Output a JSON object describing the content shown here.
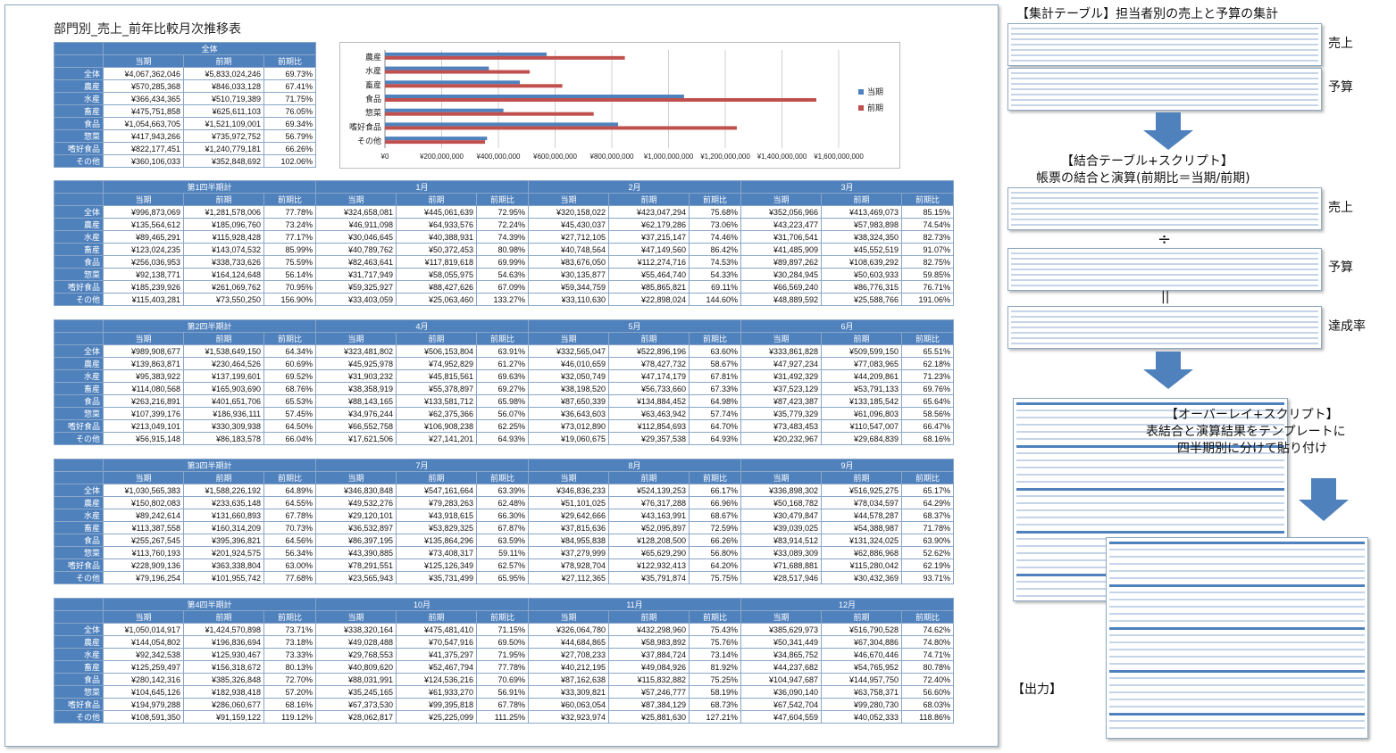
{
  "main": {
    "title": "部門別_売上_前年比較月次推移表",
    "summary": {
      "group": "全体",
      "cols": [
        "当期",
        "前期",
        "前期比"
      ],
      "rows": [
        [
          "全体",
          "¥4,067,362,046",
          "¥5,833,024,246",
          "69.73%"
        ],
        [
          "農産",
          "¥570,285,368",
          "¥846,033,128",
          "67.41%"
        ],
        [
          "水産",
          "¥366,434,365",
          "¥510,719,389",
          "71.75%"
        ],
        [
          "畜産",
          "¥475,751,858",
          "¥625,611,103",
          "76.05%"
        ],
        [
          "食品",
          "¥1,054,663,705",
          "¥1,521,109,001",
          "69.34%"
        ],
        [
          "惣菜",
          "¥417,943,266",
          "¥735,972,752",
          "56.79%"
        ],
        [
          "嗜好食品",
          "¥822,177,451",
          "¥1,240,779,181",
          "66.26%"
        ],
        [
          "その他",
          "¥360,106,033",
          "¥352,848,692",
          "102.06%"
        ]
      ]
    },
    "quarters": [
      {
        "groups": [
          "第1四半期計",
          "1月",
          "2月",
          "3月"
        ],
        "rows": [
          [
            "全体",
            "¥996,873,069",
            "¥1,281,578,006",
            "77.78%",
            "¥324,658,081",
            "¥445,061,639",
            "72.95%",
            "¥320,158,022",
            "¥423,047,294",
            "75.68%",
            "¥352,056,966",
            "¥413,469,073",
            "85.15%"
          ],
          [
            "農産",
            "¥135,564,612",
            "¥185,096,760",
            "73.24%",
            "¥46,911,098",
            "¥64,933,576",
            "72.24%",
            "¥45,430,037",
            "¥62,179,286",
            "73.06%",
            "¥43,223,477",
            "¥57,983,898",
            "74.54%"
          ],
          [
            "水産",
            "¥89,465,291",
            "¥115,928,428",
            "77.17%",
            "¥30,046,645",
            "¥40,388,931",
            "74.39%",
            "¥27,712,105",
            "¥37,215,147",
            "74.46%",
            "¥31,706,541",
            "¥38,324,350",
            "82.73%"
          ],
          [
            "畜産",
            "¥123,024,235",
            "¥143,074,532",
            "85.99%",
            "¥40,789,762",
            "¥50,372,453",
            "80.98%",
            "¥40,748,564",
            "¥47,149,560",
            "86.42%",
            "¥41,485,909",
            "¥45,552,519",
            "91.07%"
          ],
          [
            "食品",
            "¥256,036,953",
            "¥338,733,626",
            "75.59%",
            "¥82,463,641",
            "¥117,819,618",
            "69.99%",
            "¥83,676,050",
            "¥112,274,716",
            "74.53%",
            "¥89,897,262",
            "¥108,639,292",
            "82.75%"
          ],
          [
            "惣菜",
            "¥92,138,771",
            "¥164,124,648",
            "56.14%",
            "¥31,717,949",
            "¥58,055,975",
            "54.63%",
            "¥30,135,877",
            "¥55,464,740",
            "54.33%",
            "¥30,284,945",
            "¥50,603,933",
            "59.85%"
          ],
          [
            "嗜好食品",
            "¥185,239,926",
            "¥261,069,762",
            "70.95%",
            "¥59,325,927",
            "¥88,427,626",
            "67.09%",
            "¥59,344,759",
            "¥85,865,821",
            "69.11%",
            "¥66,569,240",
            "¥86,776,315",
            "76.71%"
          ],
          [
            "その他",
            "¥115,403,281",
            "¥73,550,250",
            "156.90%",
            "¥33,403,059",
            "¥25,063,460",
            "133.27%",
            "¥33,110,630",
            "¥22,898,024",
            "144.60%",
            "¥48,889,592",
            "¥25,588,766",
            "191.06%"
          ]
        ]
      },
      {
        "groups": [
          "第2四半期計",
          "4月",
          "5月",
          "6月"
        ],
        "rows": [
          [
            "全体",
            "¥989,908,677",
            "¥1,538,649,150",
            "64.34%",
            "¥323,481,802",
            "¥506,153,804",
            "63.91%",
            "¥332,565,047",
            "¥522,896,196",
            "63.60%",
            "¥333,861,828",
            "¥509,599,150",
            "65.51%"
          ],
          [
            "農産",
            "¥139,863,871",
            "¥230,464,526",
            "60.69%",
            "¥45,925,978",
            "¥74,952,829",
            "61.27%",
            "¥46,010,659",
            "¥78,427,732",
            "58.67%",
            "¥47,927,234",
            "¥77,083,965",
            "62.18%"
          ],
          [
            "水産",
            "¥95,383,922",
            "¥137,199,601",
            "69.52%",
            "¥31,903,232",
            "¥45,815,561",
            "69.63%",
            "¥32,050,749",
            "¥47,174,179",
            "67.81%",
            "¥31,492,329",
            "¥44,209,861",
            "71.23%"
          ],
          [
            "畜産",
            "¥114,080,568",
            "¥165,903,690",
            "68.76%",
            "¥38,358,919",
            "¥55,378,897",
            "69.27%",
            "¥38,198,520",
            "¥56,733,660",
            "67.33%",
            "¥37,523,129",
            "¥53,791,133",
            "69.76%"
          ],
          [
            "食品",
            "¥263,216,891",
            "¥401,651,706",
            "65.53%",
            "¥88,143,165",
            "¥133,581,712",
            "65.98%",
            "¥87,650,339",
            "¥134,884,452",
            "64.98%",
            "¥87,423,387",
            "¥133,185,542",
            "65.64%"
          ],
          [
            "惣菜",
            "¥107,399,176",
            "¥186,936,111",
            "57.45%",
            "¥34,976,244",
            "¥62,375,366",
            "56.07%",
            "¥36,643,603",
            "¥63,463,942",
            "57.74%",
            "¥35,779,329",
            "¥61,096,803",
            "58.56%"
          ],
          [
            "嗜好食品",
            "¥213,049,101",
            "¥330,309,938",
            "64.50%",
            "¥66,552,758",
            "¥106,908,238",
            "62.25%",
            "¥73,012,890",
            "¥112,854,693",
            "64.70%",
            "¥73,483,453",
            "¥110,547,007",
            "66.47%"
          ],
          [
            "その他",
            "¥56,915,148",
            "¥86,183,578",
            "66.04%",
            "¥17,621,506",
            "¥27,141,201",
            "64.93%",
            "¥19,060,675",
            "¥29,357,538",
            "64.93%",
            "¥20,232,967",
            "¥29,684,839",
            "68.16%"
          ]
        ]
      },
      {
        "groups": [
          "第3四半期計",
          "7月",
          "8月",
          "9月"
        ],
        "rows": [
          [
            "全体",
            "¥1,030,565,383",
            "¥1,588,226,192",
            "64.89%",
            "¥346,830,848",
            "¥547,161,664",
            "63.39%",
            "¥346,836,233",
            "¥524,139,253",
            "66.17%",
            "¥336,898,302",
            "¥516,925,275",
            "65.17%"
          ],
          [
            "農産",
            "¥150,802,083",
            "¥233,635,148",
            "64.55%",
            "¥49,532,276",
            "¥79,283,263",
            "62.48%",
            "¥51,101,025",
            "¥76,317,288",
            "66.96%",
            "¥50,168,782",
            "¥78,034,597",
            "64.29%"
          ],
          [
            "水産",
            "¥89,242,614",
            "¥131,660,893",
            "67.78%",
            "¥29,120,101",
            "¥43,918,615",
            "66.30%",
            "¥29,642,666",
            "¥43,163,991",
            "68.67%",
            "¥30,479,847",
            "¥44,578,287",
            "68.37%"
          ],
          [
            "畜産",
            "¥113,387,558",
            "¥160,314,209",
            "70.73%",
            "¥36,532,897",
            "¥53,829,325",
            "67.87%",
            "¥37,815,636",
            "¥52,095,897",
            "72.59%",
            "¥39,039,025",
            "¥54,388,987",
            "71.78%"
          ],
          [
            "食品",
            "¥255,267,545",
            "¥395,396,821",
            "64.56%",
            "¥86,397,195",
            "¥135,864,296",
            "63.59%",
            "¥84,955,838",
            "¥128,208,500",
            "66.26%",
            "¥83,914,512",
            "¥131,324,025",
            "63.90%"
          ],
          [
            "惣菜",
            "¥113,760,193",
            "¥201,924,575",
            "56.34%",
            "¥43,390,885",
            "¥73,408,317",
            "59.11%",
            "¥37,279,999",
            "¥65,629,290",
            "56.80%",
            "¥33,089,309",
            "¥62,886,968",
            "52.62%"
          ],
          [
            "嗜好食品",
            "¥228,909,136",
            "¥363,338,804",
            "63.00%",
            "¥78,291,551",
            "¥125,126,349",
            "62.57%",
            "¥78,928,704",
            "¥122,932,413",
            "64.20%",
            "¥71,688,881",
            "¥115,280,042",
            "62.19%"
          ],
          [
            "その他",
            "¥79,196,254",
            "¥101,955,742",
            "77.68%",
            "¥23,565,943",
            "¥35,731,499",
            "65.95%",
            "¥27,112,365",
            "¥35,791,874",
            "75.75%",
            "¥28,517,946",
            "¥30,432,369",
            "93.71%"
          ]
        ]
      },
      {
        "groups": [
          "第4四半期計",
          "10月",
          "11月",
          "12月"
        ],
        "rows": [
          [
            "全体",
            "¥1,050,014,917",
            "¥1,424,570,898",
            "73.71%",
            "¥338,320,164",
            "¥475,481,410",
            "71.15%",
            "¥326,064,780",
            "¥432,298,960",
            "75.43%",
            "¥385,629,973",
            "¥516,790,528",
            "74.62%"
          ],
          [
            "農産",
            "¥144,054,802",
            "¥196,836,694",
            "73.18%",
            "¥49,028,488",
            "¥70,547,916",
            "69.50%",
            "¥44,684,865",
            "¥58,983,892",
            "75.76%",
            "¥50,341,449",
            "¥67,304,886",
            "74.80%"
          ],
          [
            "水産",
            "¥92,342,538",
            "¥125,930,467",
            "73.33%",
            "¥29,768,553",
            "¥41,375,297",
            "71.95%",
            "¥27,708,233",
            "¥37,884,724",
            "73.14%",
            "¥34,865,752",
            "¥46,670,446",
            "74.71%"
          ],
          [
            "畜産",
            "¥125,259,497",
            "¥156,318,672",
            "80.13%",
            "¥40,809,620",
            "¥52,467,794",
            "77.78%",
            "¥40,212,195",
            "¥49,084,926",
            "81.92%",
            "¥44,237,682",
            "¥54,765,952",
            "80.78%"
          ],
          [
            "食品",
            "¥280,142,316",
            "¥385,326,848",
            "72.70%",
            "¥88,031,991",
            "¥124,536,216",
            "70.69%",
            "¥87,162,638",
            "¥115,832,882",
            "75.25%",
            "¥104,947,687",
            "¥144,957,750",
            "72.40%"
          ],
          [
            "惣菜",
            "¥104,645,126",
            "¥182,938,418",
            "57.20%",
            "¥35,245,165",
            "¥61,933,270",
            "56.91%",
            "¥33,309,821",
            "¥57,246,777",
            "58.19%",
            "¥36,090,140",
            "¥63,758,371",
            "56.60%"
          ],
          [
            "嗜好食品",
            "¥194,979,288",
            "¥286,060,677",
            "68.16%",
            "¥67,373,530",
            "¥99,395,818",
            "67.78%",
            "¥60,063,054",
            "¥87,384,129",
            "68.73%",
            "¥67,542,704",
            "¥99,280,730",
            "68.03%"
          ],
          [
            "その他",
            "¥108,591,350",
            "¥91,159,122",
            "119.12%",
            "¥28,062,817",
            "¥25,225,099",
            "111.25%",
            "¥32,923,974",
            "¥25,881,630",
            "127.21%",
            "¥47,604,559",
            "¥40,052,333",
            "118.86%"
          ]
        ]
      }
    ]
  },
  "chart_data": {
    "type": "bar",
    "orientation": "horizontal",
    "categories": [
      "農産",
      "水産",
      "畜産",
      "食品",
      "惣菜",
      "嗜好食品",
      "その他"
    ],
    "series": [
      {
        "name": "当期",
        "color": "#4f81bd",
        "values": [
          570285368,
          366434365,
          475751858,
          1054663705,
          417943266,
          822177451,
          360106033
        ]
      },
      {
        "name": "前期",
        "color": "#c0504d",
        "values": [
          846033128,
          510719389,
          625611103,
          1521109001,
          735972752,
          1240779181,
          352848692
        ]
      }
    ],
    "xlim": [
      0,
      1600000000
    ],
    "xticks": [
      "¥0",
      "¥200,000,000",
      "¥400,000,000",
      "¥600,000,000",
      "¥800,000,000",
      "¥1,000,000,000",
      "¥1,200,000,000",
      "¥1,400,000,000",
      "¥1,600,000,000"
    ],
    "legend": "right",
    "grid": true
  },
  "right": {
    "step1_title": "【集計テーブル】担当者別の売上と予算の集計",
    "step1_label_sales": "売上",
    "step1_label_budget": "予算",
    "step2_title1": "【結合テーブル+スクリプト】",
    "step2_title2": "帳票の結合と演算(前期比＝当期/前期)",
    "step2_label_sales": "売上",
    "divide_sign": "÷",
    "equals_sign": "||",
    "step2_label_budget": "予算",
    "step2_label_rate": "達成率",
    "step3_title1": "【オーバーレイ+スクリプト】",
    "step3_title2": "表結合と演算結果をテンプレートに",
    "step3_title3": "四半期別に分けて貼り付け",
    "output_label": "【出力】",
    "colors": {
      "arrow": "#4f81bd",
      "header": "#4f81bd"
    }
  }
}
